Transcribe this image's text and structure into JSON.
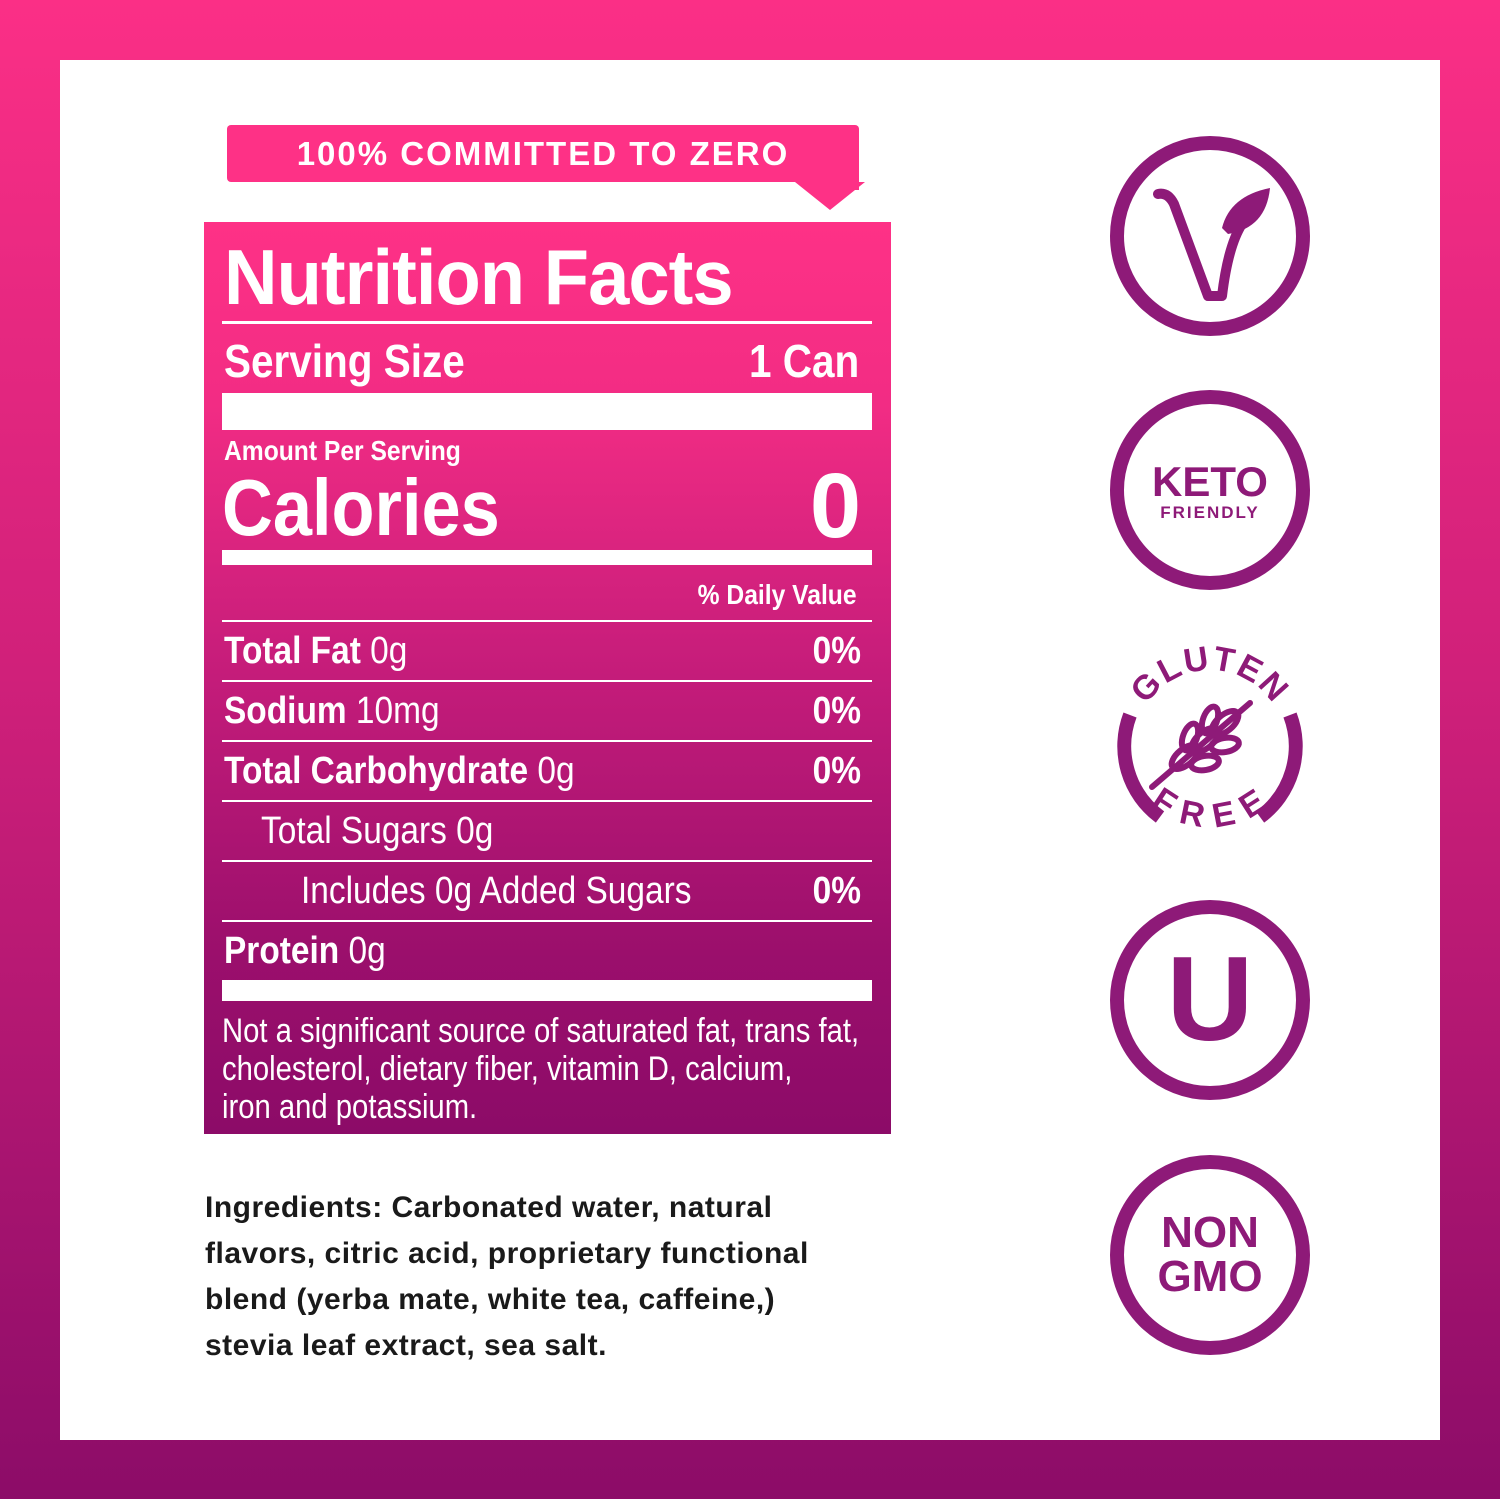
{
  "banner": "100% COMMITTED TO ZERO",
  "nutrition": {
    "title": "Nutrition Facts",
    "serving_label": "Serving Size",
    "serving_value": "1 Can",
    "amount_per_serving": "Amount Per Serving",
    "calories_label": "Calories",
    "calories_value": "0",
    "daily_value_header": "% Daily Value",
    "rows": [
      {
        "label": "Total Fat",
        "amount": "0g",
        "dv": "0%"
      },
      {
        "label": "Sodium",
        "amount": "10mg",
        "dv": "0%"
      },
      {
        "label": "Total Carbohydrate",
        "amount": "0g",
        "dv": "0%"
      },
      {
        "label": "Total Sugars 0g",
        "amount": "",
        "dv": ""
      },
      {
        "label": "Includes 0g Added Sugars",
        "amount": "",
        "dv": "0%"
      },
      {
        "label": "Protein",
        "amount": "0g",
        "dv": ""
      }
    ],
    "footnote": [
      "Not a significant source of saturated fat, trans fat,",
      "cholesterol, dietary fiber, vitamin D, calcium,",
      "iron and potassium."
    ]
  },
  "ingredients": [
    "Ingredients: Carbonated water, natural",
    "flavors, citric acid, proprietary functional",
    "blend (yerba mate, white tea, caffeine,)",
    "stevia leaf extract, sea salt."
  ],
  "badges": {
    "vegan": "vegan-v-leaf-icon",
    "keto": {
      "line1": "KETO",
      "line2": "FRIENDLY"
    },
    "gluten": {
      "top": "GLUTEN",
      "bottom": "FREE"
    },
    "kosher": "U",
    "nongmo": {
      "line1": "NON",
      "line2": "GMO"
    }
  },
  "colors": {
    "pink": "#fe3186",
    "purple": "#8c0b68",
    "badge": "#8e1a78"
  }
}
